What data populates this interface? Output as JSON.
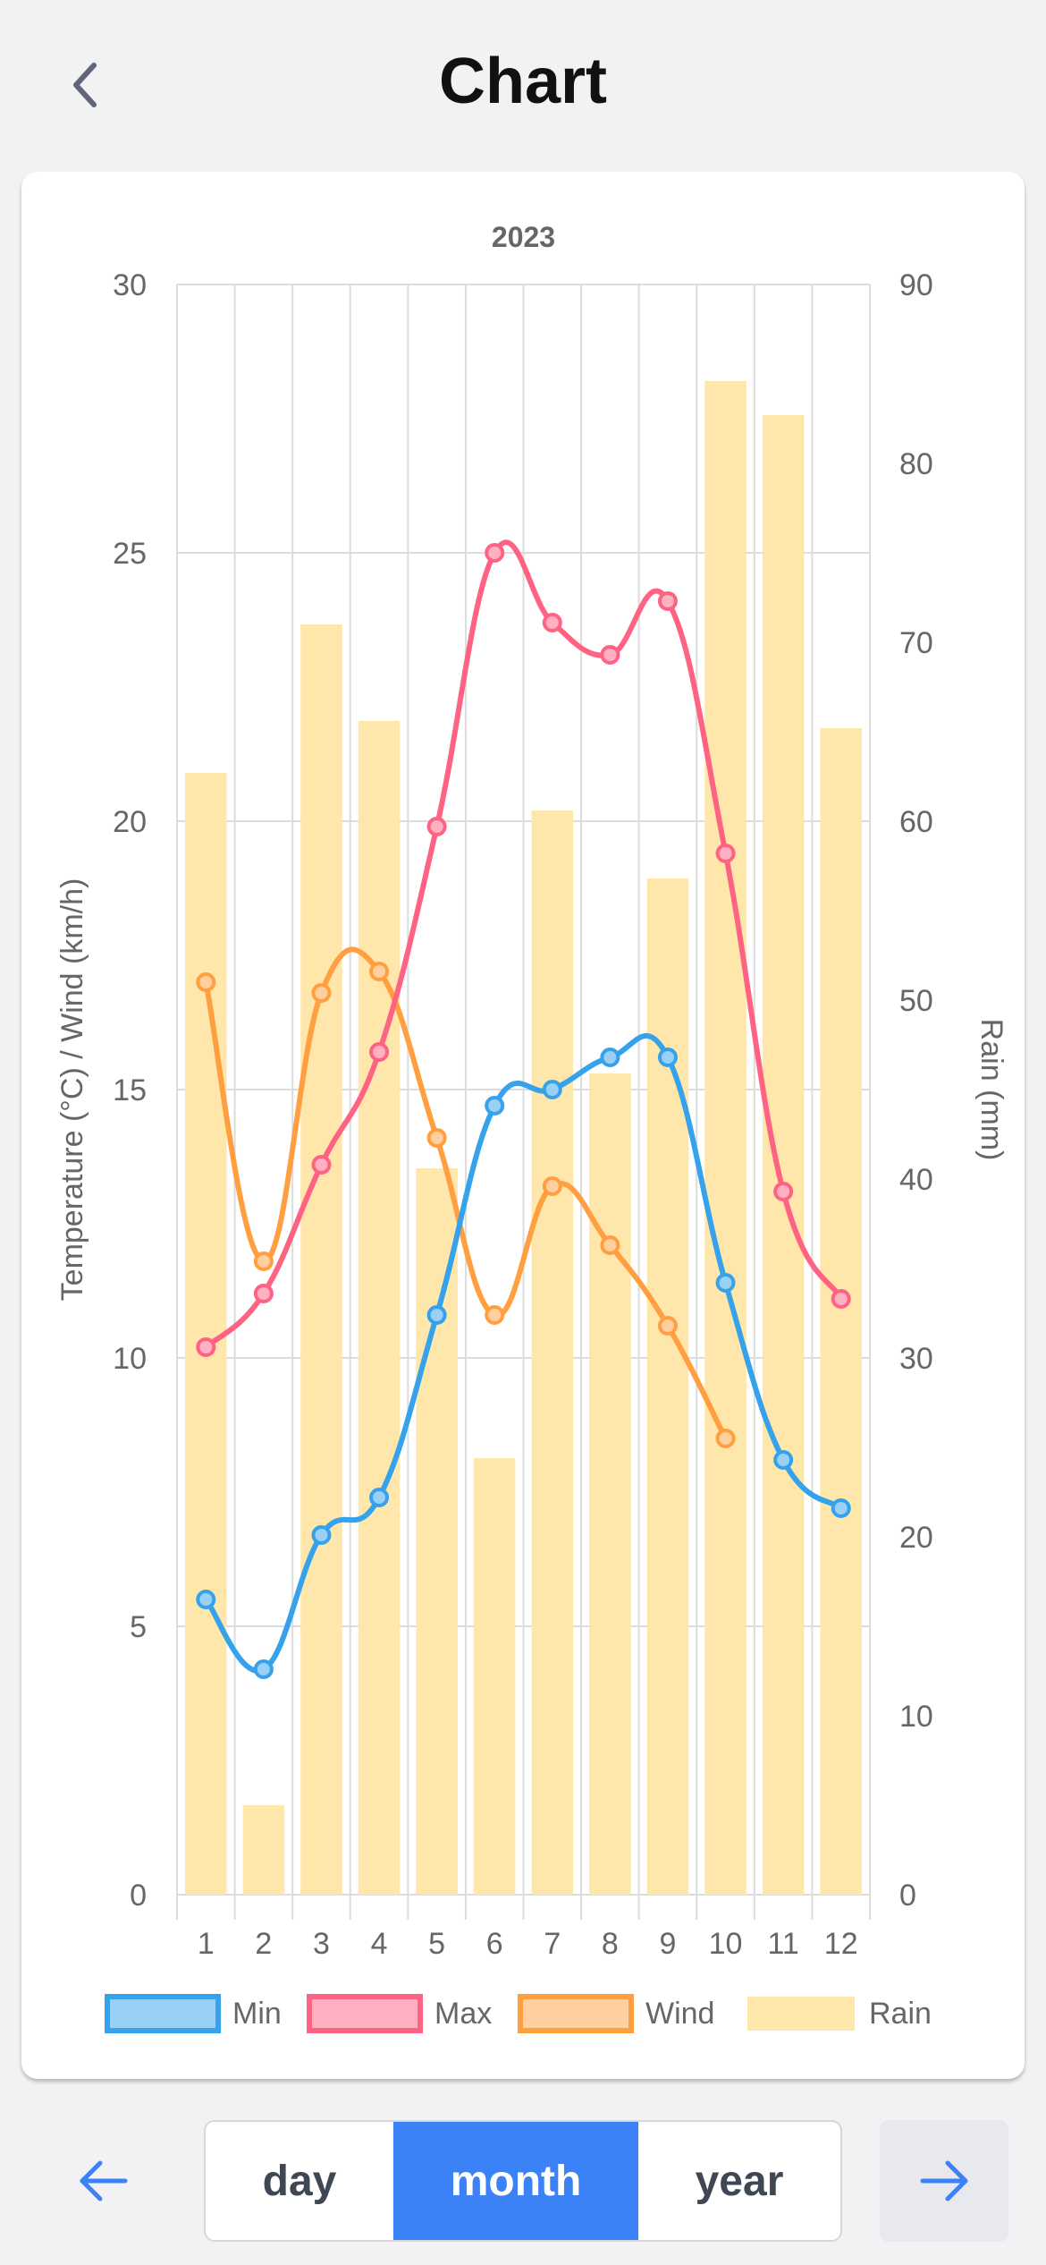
{
  "header": {
    "title": "Chart",
    "back_icon": "chevron-left-icon"
  },
  "footer": {
    "prev_icon": "arrow-left-icon",
    "next_icon": "arrow-right-icon",
    "periods": [
      {
        "label": "day",
        "selected": false
      },
      {
        "label": "month",
        "selected": true
      },
      {
        "label": "year",
        "selected": false
      }
    ]
  },
  "colors": {
    "min": "#36a2eb",
    "max": "#ff6384",
    "wind": "#ff9f40",
    "rain": "#ffe7ab",
    "accent": "#3b82f6"
  },
  "chart_data": {
    "type": "bar+line",
    "title": "2023",
    "categories": [
      "1",
      "2",
      "3",
      "4",
      "5",
      "6",
      "7",
      "8",
      "9",
      "10",
      "11",
      "12"
    ],
    "y_left": {
      "label": "Temperature (°C) / Wind (km/h)",
      "range": [
        0,
        30
      ],
      "ticks": [
        0,
        5,
        10,
        15,
        20,
        25,
        30
      ]
    },
    "y_right": {
      "label": "Rain (mm)",
      "range": [
        0,
        90
      ],
      "ticks": [
        0,
        10,
        20,
        30,
        40,
        50,
        60,
        70,
        80,
        90
      ]
    },
    "grid": true,
    "legend_position": "bottom",
    "series": [
      {
        "name": "Min",
        "type": "line",
        "axis": "left",
        "values": [
          5.5,
          4.2,
          6.7,
          7.4,
          10.8,
          14.7,
          15.0,
          15.6,
          15.6,
          11.4,
          8.1,
          7.2
        ]
      },
      {
        "name": "Max",
        "type": "line",
        "axis": "left",
        "values": [
          10.2,
          11.2,
          13.6,
          15.7,
          19.9,
          25.0,
          23.7,
          23.1,
          24.1,
          19.4,
          13.1,
          11.1
        ]
      },
      {
        "name": "Wind",
        "type": "line",
        "axis": "left",
        "values": [
          17.0,
          11.8,
          16.8,
          17.2,
          14.1,
          10.8,
          13.2,
          12.1,
          10.6,
          8.5,
          null,
          null
        ]
      },
      {
        "name": "Rain",
        "type": "bar",
        "axis": "right",
        "values": [
          62.7,
          5.0,
          71.0,
          65.6,
          40.6,
          24.4,
          60.6,
          45.9,
          56.8,
          84.6,
          82.7,
          65.2
        ]
      }
    ]
  }
}
